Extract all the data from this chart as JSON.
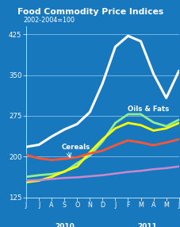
{
  "title": "Food Commodity Price Indices",
  "subtitle": "2002-2004=100",
  "bg_color": "#1878be",
  "title_bg": "#1a1a6e",
  "title_color": "#ffffff",
  "subtitle_color": "#ffffff",
  "axis_color": "#ffffff",
  "grid_color": "#ffffff",
  "ylim": [
    125,
    440
  ],
  "yticks": [
    125,
    200,
    275,
    350,
    425
  ],
  "x_labels": [
    "J",
    "J",
    "A",
    "S",
    "O",
    "N",
    "D",
    "J",
    "F",
    "M",
    "A",
    "M",
    "J"
  ],
  "year_labels": [
    "2010",
    "2011"
  ],
  "series": {
    "Sugar": {
      "color": "#ffffff",
      "linewidth": 2.2,
      "values": [
        218,
        222,
        237,
        250,
        260,
        282,
        335,
        402,
        422,
        412,
        352,
        308,
        358
      ]
    },
    "Oils & Fats": {
      "color": "#90ee90",
      "linewidth": 2.0,
      "values": [
        163,
        166,
        168,
        172,
        188,
        202,
        228,
        262,
        278,
        278,
        263,
        256,
        268
      ]
    },
    "Cereals": {
      "color": "#ffff00",
      "linewidth": 2.0,
      "values": [
        153,
        156,
        163,
        173,
        182,
        208,
        232,
        252,
        262,
        258,
        248,
        252,
        262
      ]
    },
    "Dairy": {
      "color": "#ff5533",
      "linewidth": 2.0,
      "values": [
        203,
        197,
        194,
        196,
        199,
        206,
        211,
        221,
        230,
        226,
        221,
        226,
        232
      ]
    },
    "Meat": {
      "color": "#cc88cc",
      "linewidth": 1.8,
      "values": [
        156,
        157,
        159,
        161,
        162,
        164,
        166,
        169,
        172,
        174,
        177,
        179,
        182
      ]
    }
  }
}
